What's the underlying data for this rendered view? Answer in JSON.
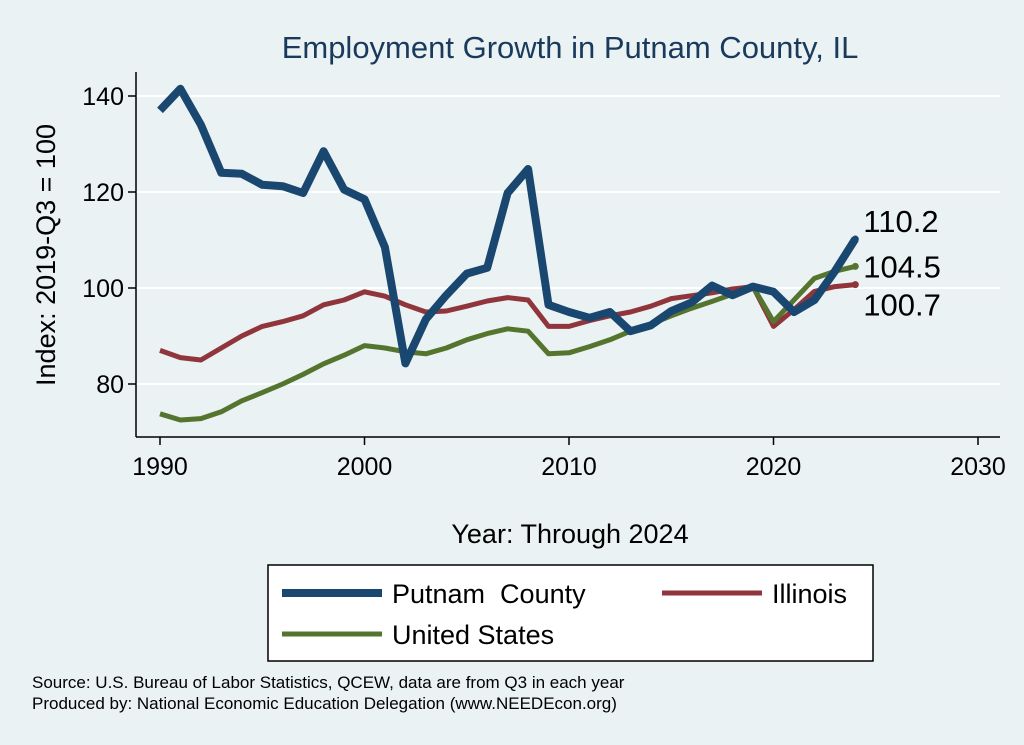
{
  "chart_data": {
    "type": "line",
    "title": "Employment Growth in Putnam County, IL",
    "xlabel": "Year: Through 2024",
    "ylabel": "Index: 2019-Q3 = 100",
    "xlim": [
      1990,
      2030
    ],
    "ylim": [
      71,
      144
    ],
    "xticks": [
      "1990",
      "2000",
      "2010",
      "2020",
      "2030"
    ],
    "yticks": [
      "80",
      "100",
      "120",
      "140"
    ],
    "grid": "horizontal",
    "legend_position": "bottom",
    "x": [
      1990,
      1991,
      1992,
      1993,
      1994,
      1995,
      1996,
      1997,
      1998,
      1999,
      2000,
      2001,
      2002,
      2003,
      2004,
      2005,
      2006,
      2007,
      2008,
      2009,
      2010,
      2011,
      2012,
      2013,
      2014,
      2015,
      2016,
      2017,
      2018,
      2019,
      2020,
      2021,
      2022,
      2023,
      2024
    ],
    "series": [
      {
        "name": "Putnam  County",
        "color": "#1a476f",
        "values": [
          137,
          141.5,
          134,
          124,
          123.8,
          121.5,
          121.2,
          119.8,
          128.5,
          120.5,
          118.5,
          108.5,
          84.3,
          93.5,
          98.5,
          103,
          104.2,
          119.8,
          124.8,
          96.5,
          95,
          93.8,
          95,
          91,
          92.2,
          95.2,
          97,
          100.5,
          98.5,
          100.3,
          99.2,
          95,
          97.5,
          103.5,
          110.2
        ],
        "end_label": "110.2"
      },
      {
        "name": "Illinois",
        "color": "#90353b",
        "values": [
          87,
          85.5,
          85,
          87.5,
          90,
          92,
          93,
          94.2,
          96.5,
          97.5,
          99.2,
          98.3,
          96.5,
          95,
          95.2,
          96.2,
          97.3,
          98,
          97.5,
          92,
          92,
          93.2,
          94.2,
          95,
          96.2,
          97.8,
          98.4,
          99,
          99.8,
          100.3,
          92,
          95.5,
          99.3,
          100.3,
          100.7
        ],
        "end_label": "100.7"
      },
      {
        "name": "United States",
        "color": "#55752f",
        "values": [
          73.8,
          72.5,
          72.8,
          74.2,
          76.5,
          78.2,
          80,
          82,
          84.2,
          86,
          88,
          87.5,
          86.7,
          86.3,
          87.5,
          89.2,
          90.5,
          91.5,
          91,
          86.3,
          86.5,
          87.8,
          89.2,
          91,
          92.5,
          94.2,
          95.8,
          97.2,
          98.7,
          100.3,
          93,
          97.5,
          102,
          103.5,
          104.5
        ],
        "end_label": "104.5"
      }
    ],
    "notes": [
      "Source: U.S. Bureau of Labor Statistics, QCEW, data are from Q3 in each year",
      "Produced by: National Economic Education Delegation (www.NEEDEcon.org)"
    ]
  }
}
